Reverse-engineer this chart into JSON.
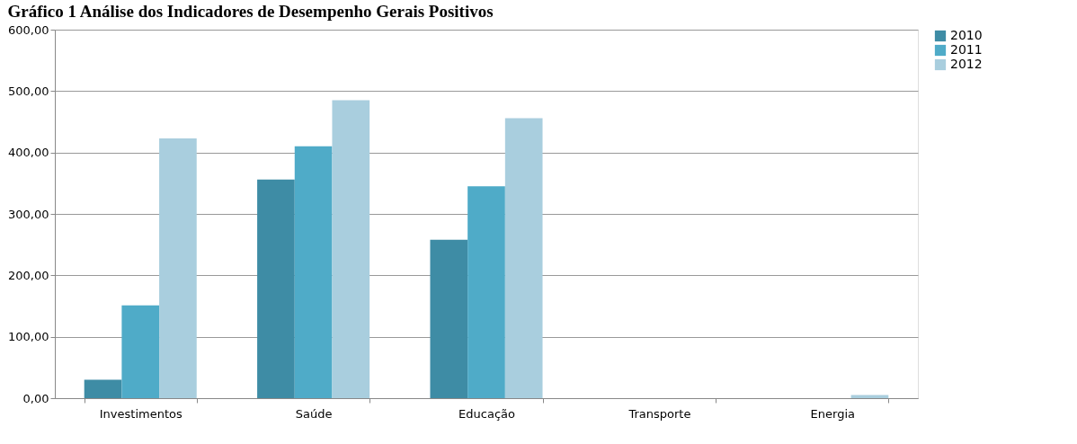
{
  "chart_data": {
    "type": "bar",
    "title": "Gráfico 1 Análise dos Indicadores de Desempenho Gerais Positivos",
    "categories": [
      "Investimentos",
      "Saúde",
      "Educação",
      "Transporte",
      "Energia"
    ],
    "series": [
      {
        "name": "2010",
        "color": "#3e8ca5",
        "values": [
          30,
          356,
          258,
          0,
          0
        ]
      },
      {
        "name": "2011",
        "color": "#4fabc8",
        "values": [
          151,
          410,
          345,
          0,
          0
        ]
      },
      {
        "name": "2012",
        "color": "#a9cede",
        "values": [
          423,
          485,
          456,
          0,
          5
        ]
      }
    ],
    "ylim": [
      0,
      600
    ],
    "yticks": [
      {
        "value": 0,
        "label": "0,00"
      },
      {
        "value": 100,
        "label": "100,00"
      },
      {
        "value": 200,
        "label": "200,00"
      },
      {
        "value": 300,
        "label": "300,00"
      },
      {
        "value": 400,
        "label": "400,00"
      },
      {
        "value": 500,
        "label": "500,00"
      },
      {
        "value": 600,
        "label": "600,00"
      }
    ],
    "grid": "y",
    "legend": "right"
  }
}
